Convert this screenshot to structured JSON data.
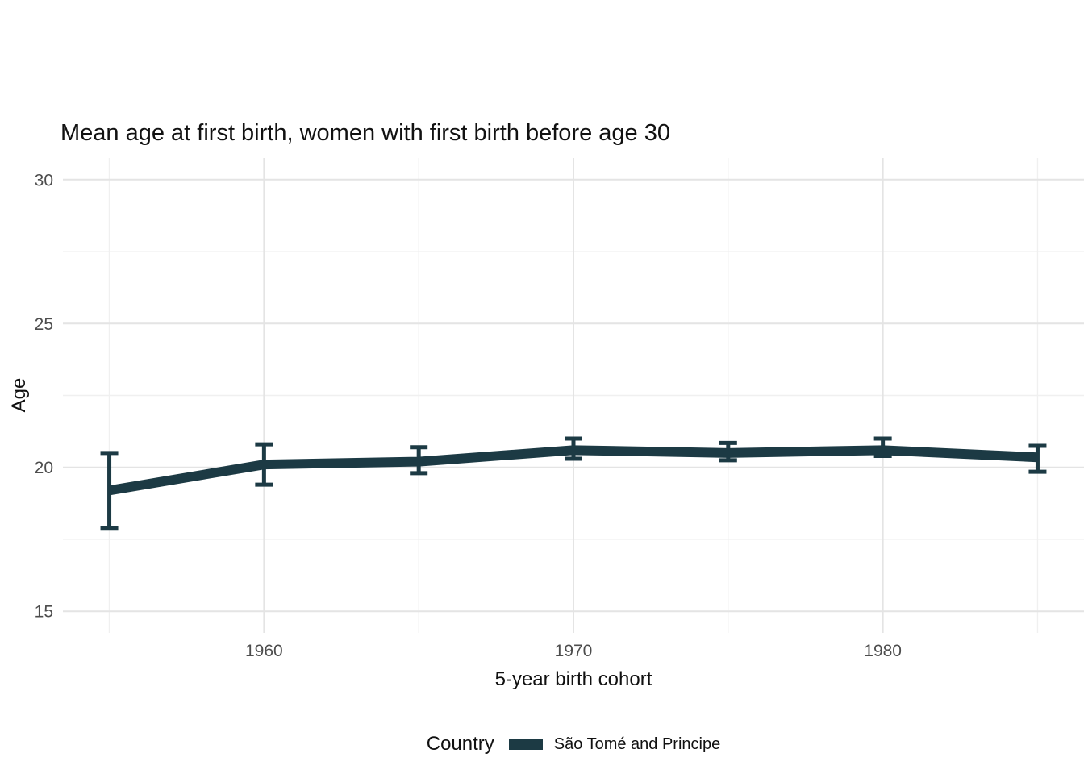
{
  "chart_data": {
    "type": "line",
    "title": "Mean age at first birth, women with first birth before age 30",
    "xlabel": "5-year birth cohort",
    "ylabel": "Age",
    "legend_title": "Country",
    "legend_position": "bottom",
    "grid": "on",
    "x": [
      1955,
      1960,
      1965,
      1970,
      1975,
      1980,
      1985
    ],
    "series": [
      {
        "name": "São Tomé and Principe",
        "color": "#1c3a44",
        "values": [
          19.2,
          20.1,
          20.2,
          20.6,
          20.5,
          20.6,
          20.35
        ],
        "ci_low": [
          17.9,
          19.4,
          19.8,
          20.3,
          20.25,
          20.4,
          19.85
        ],
        "ci_high": [
          20.5,
          20.8,
          20.7,
          21.0,
          20.85,
          21.0,
          20.75
        ]
      }
    ],
    "x_ticks_major": [
      1960,
      1970,
      1980
    ],
    "x_ticks_minor": [
      1955,
      1965,
      1975,
      1985
    ],
    "y_ticks_major": [
      15,
      20,
      25,
      30
    ],
    "y_ticks_minor": [
      17.5,
      22.5,
      27.5
    ],
    "xlim": [
      1953.5,
      1986.5
    ],
    "ylim": [
      14.25,
      30.75
    ]
  },
  "style": {
    "grid_major_color": "#e4e4e4",
    "grid_minor_color": "#f0f0f0",
    "tick_label_color": "#4d4d4d"
  }
}
